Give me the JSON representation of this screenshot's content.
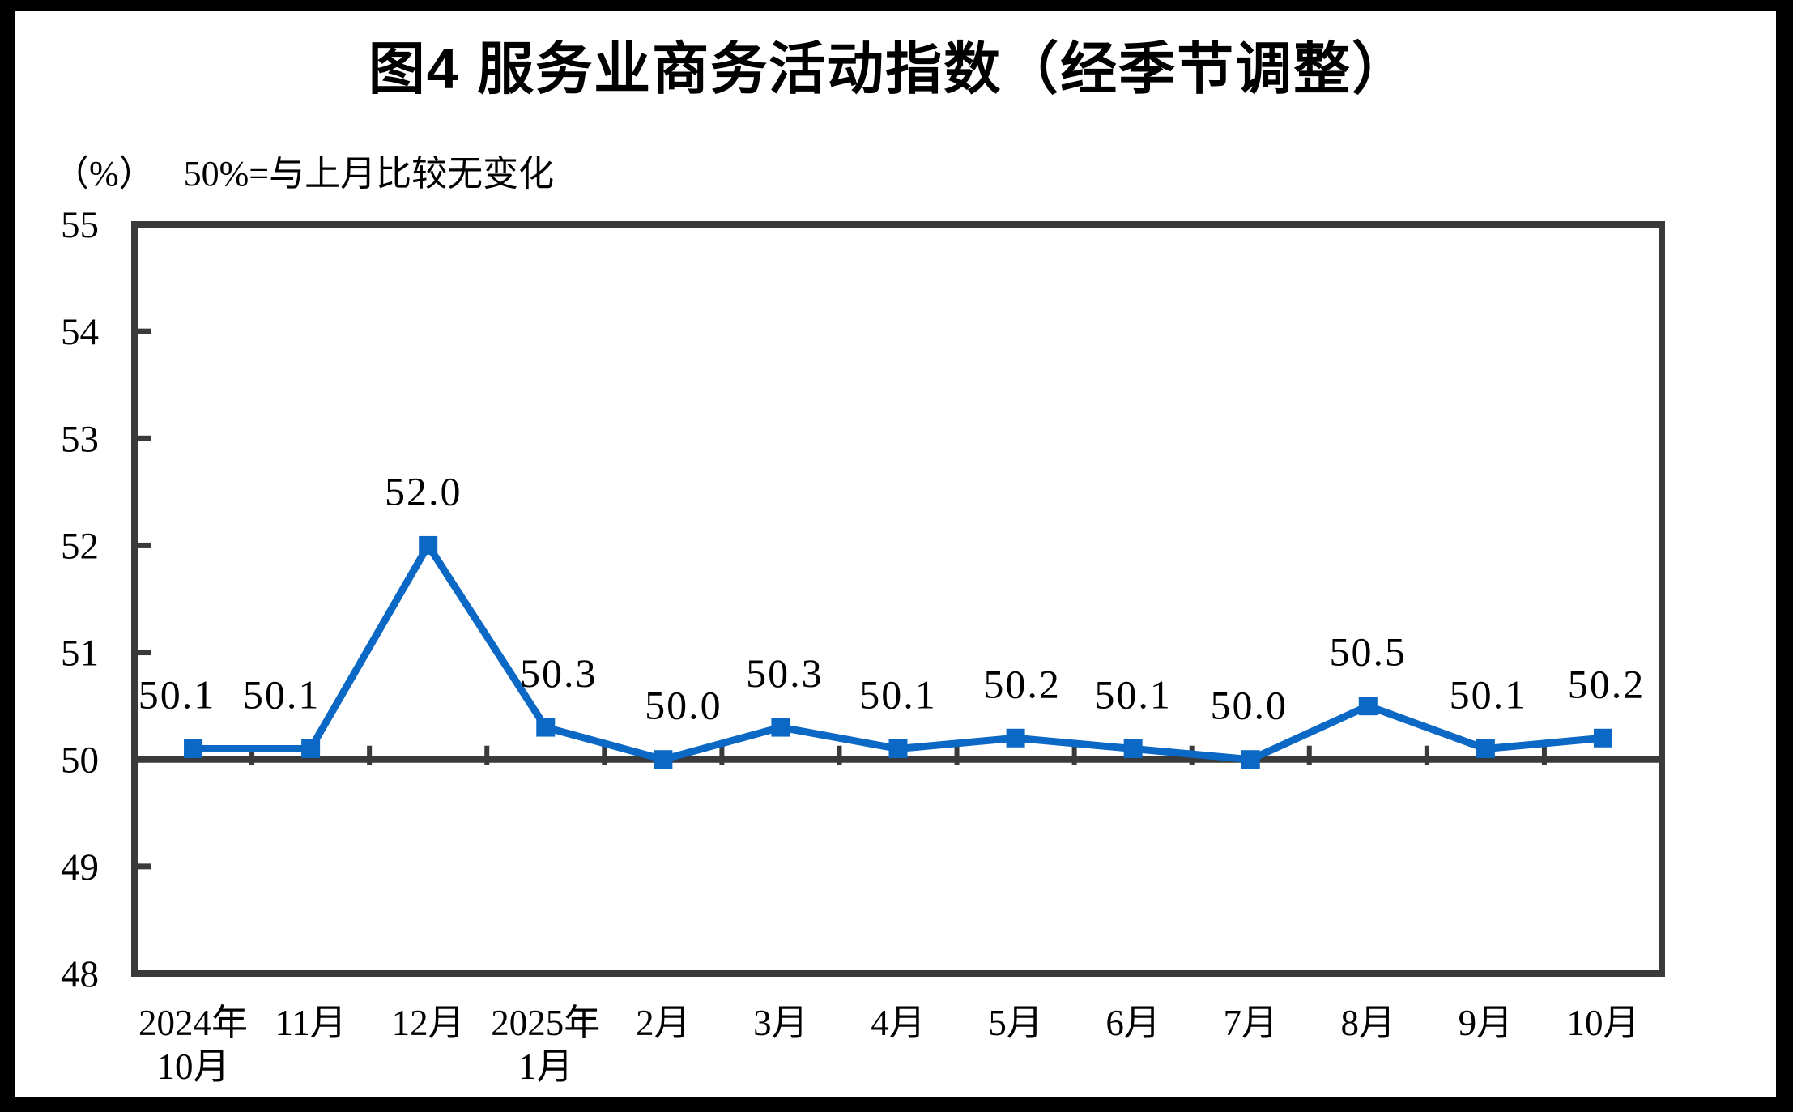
{
  "page": {
    "title": "图4 服务业商务活动指数（经季节调整）",
    "unit_label": "（%）",
    "note": "50%=与上月比较无变化"
  },
  "chart_data": {
    "type": "line",
    "title": "图4 服务业商务活动指数（经季节调整）",
    "subtitle": "50%=与上月比较无变化",
    "unit": "%",
    "series_name": "服务业商务活动指数",
    "categories": [
      "2024年\n10月",
      "11月",
      "12月",
      "2025年\n1月",
      "2月",
      "3月",
      "4月",
      "5月",
      "6月",
      "7月",
      "8月",
      "9月",
      "10月"
    ],
    "values": [
      50.1,
      50.1,
      52.0,
      50.3,
      50.0,
      50.3,
      50.1,
      50.2,
      50.1,
      50.0,
      50.5,
      50.1,
      50.2
    ],
    "data_labels": [
      "50.1",
      "50.1",
      "52.0",
      "50.3",
      "50.0",
      "50.3",
      "50.1",
      "50.2",
      "50.1",
      "50.0",
      "50.5",
      "50.1",
      "50.2"
    ],
    "ylim": [
      48,
      55
    ],
    "yticks": [
      48,
      49,
      50,
      51,
      52,
      53,
      54,
      55
    ],
    "baseline": 50,
    "grid": false,
    "legend": "none",
    "marker": "square",
    "colors": {
      "line": "#0b68c4",
      "marker": "#0b68c4",
      "axis": "#3a3a3a",
      "text": "#000000",
      "background": "#ffffff",
      "page_border": "#000000"
    }
  }
}
